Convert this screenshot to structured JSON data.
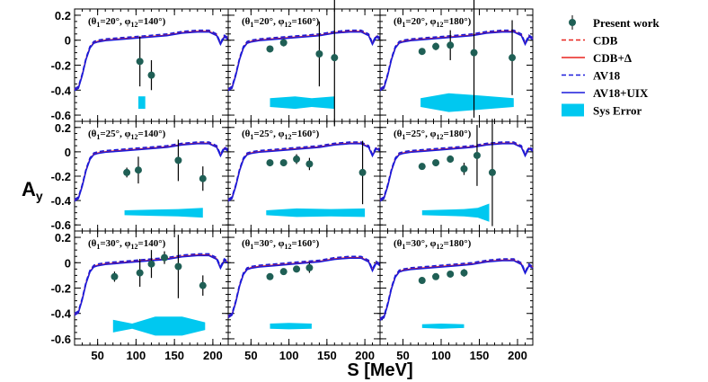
{
  "chart_data": {
    "type": "scatter",
    "xlabel": "S [MeV]",
    "ylabel": "A",
    "ylabel_sub": "y",
    "xlim": [
      20,
      220
    ],
    "ylim": [
      -0.65,
      0.25
    ],
    "x_ticks": [
      50,
      100,
      150,
      200
    ],
    "y_ticks": [
      0.2,
      0,
      -0.2,
      -0.4,
      -0.6
    ],
    "x_tick_labels": [
      "50",
      "100",
      "150",
      "200"
    ],
    "y_tick_labels": [
      "0.2",
      "0",
      "-0.2",
      "-0.4",
      "-0.6"
    ],
    "legend": [
      {
        "label": "Present work",
        "style": "marker",
        "color": "#1f5f55"
      },
      {
        "label": "CDB",
        "style": "dashed",
        "color": "#e8231f"
      },
      {
        "label": "CDB+Δ",
        "style": "solid",
        "color": "#e8231f"
      },
      {
        "label": "AV18",
        "style": "dashed",
        "color": "#1a1adb"
      },
      {
        "label": "AV18+UIX",
        "style": "solid",
        "color": "#1a1adb"
      },
      {
        "label": "Sys Error",
        "style": "band",
        "color": "#00c8f0"
      }
    ],
    "panels": [
      {
        "theta": "20°",
        "phi": "140°",
        "title_theta_part": "(θ",
        "title_theta_sub": "1",
        "title_theta_rest": "=20°, φ",
        "title_phi_sub": "12",
        "title_phi_rest": "=140°)",
        "points": [
          {
            "x": 105,
            "y": -0.17,
            "err": 0.2
          },
          {
            "x": 120,
            "y": -0.28,
            "err": 0.12
          }
        ],
        "sys_error": [
          {
            "x": 103,
            "h": 0.1
          },
          {
            "x": 112,
            "h": 0.1
          }
        ],
        "theory_shift": 0.0
      },
      {
        "theta": "20°",
        "phi": "160°",
        "title_theta_part": "(θ",
        "title_theta_sub": "1",
        "title_theta_rest": "=20°, φ",
        "title_phi_sub": "12",
        "title_phi_rest": "=160°)",
        "points": [
          {
            "x": 75,
            "y": -0.07,
            "err": 0.0
          },
          {
            "x": 93,
            "y": -0.02,
            "err": 0.03
          },
          {
            "x": 140,
            "y": -0.11,
            "err": 0.26
          },
          {
            "x": 160,
            "y": -0.14,
            "err": 0.55
          }
        ],
        "sys_error": [
          {
            "x": 75,
            "h": 0.07
          },
          {
            "x": 108,
            "h": 0.1
          },
          {
            "x": 130,
            "h": 0.07
          },
          {
            "x": 160,
            "h": 0.1
          }
        ],
        "theory_shift": 0.0
      },
      {
        "theta": "20°",
        "phi": "180°",
        "title_theta_part": "(θ",
        "title_theta_sub": "1",
        "title_theta_rest": "=20°, φ",
        "title_phi_sub": "12",
        "title_phi_rest": "=180°)",
        "points": [
          {
            "x": 75,
            "y": -0.09,
            "err": 0.02
          },
          {
            "x": 93,
            "y": -0.05,
            "err": 0.03
          },
          {
            "x": 112,
            "y": -0.04,
            "err": 0.12
          },
          {
            "x": 143,
            "y": -0.1,
            "err": 0.52
          },
          {
            "x": 193,
            "y": -0.14,
            "err": 0.3
          }
        ],
        "sys_error": [
          {
            "x": 73,
            "h": 0.07
          },
          {
            "x": 110,
            "h": 0.15
          },
          {
            "x": 143,
            "h": 0.12
          },
          {
            "x": 195,
            "h": 0.07
          }
        ],
        "theory_shift": 0.0
      },
      {
        "theta": "25°",
        "phi": "140°",
        "title_theta_part": "(θ",
        "title_theta_sub": "1",
        "title_theta_rest": "=25°, φ",
        "title_phi_sub": "12",
        "title_phi_rest": "=140°)",
        "points": [
          {
            "x": 88,
            "y": -0.17,
            "err": 0.04
          },
          {
            "x": 103,
            "y": -0.15,
            "err": 0.11
          },
          {
            "x": 155,
            "y": -0.07,
            "err": 0.17
          },
          {
            "x": 187,
            "y": -0.22,
            "err": 0.1
          }
        ],
        "sys_error": [
          {
            "x": 85,
            "h": 0.04
          },
          {
            "x": 120,
            "h": 0.05
          },
          {
            "x": 155,
            "h": 0.06
          },
          {
            "x": 187,
            "h": 0.08
          }
        ],
        "theory_shift": 0.0
      },
      {
        "theta": "25°",
        "phi": "160°",
        "title_theta_part": "(θ",
        "title_theta_sub": "1",
        "title_theta_rest": "=25°, φ",
        "title_phi_sub": "12",
        "title_phi_rest": "=160°)",
        "points": [
          {
            "x": 75,
            "y": -0.09,
            "err": 0.0
          },
          {
            "x": 93,
            "y": -0.09,
            "err": 0.02
          },
          {
            "x": 110,
            "y": -0.06,
            "err": 0.04
          },
          {
            "x": 127,
            "y": -0.1,
            "err": 0.05
          },
          {
            "x": 197,
            "y": -0.17,
            "err": 0.26
          }
        ],
        "sys_error": [
          {
            "x": 70,
            "h": 0.04
          },
          {
            "x": 110,
            "h": 0.07
          },
          {
            "x": 155,
            "h": 0.06
          },
          {
            "x": 200,
            "h": 0.07
          }
        ],
        "theory_shift": 0.0
      },
      {
        "theta": "25°",
        "phi": "180°",
        "title_theta_part": "(θ",
        "title_theta_sub": "1",
        "title_theta_rest": "=25°, φ",
        "title_phi_sub": "12",
        "title_phi_rest": "=180°)",
        "points": [
          {
            "x": 75,
            "y": -0.12,
            "err": 0.02
          },
          {
            "x": 93,
            "y": -0.09,
            "err": 0.02
          },
          {
            "x": 112,
            "y": -0.06,
            "err": 0.03
          },
          {
            "x": 130,
            "y": -0.14,
            "err": 0.05
          },
          {
            "x": 147,
            "y": -0.03,
            "err": 0.25
          },
          {
            "x": 167,
            "y": -0.17,
            "err": 0.44
          }
        ],
        "sys_error": [
          {
            "x": 75,
            "h": 0.04
          },
          {
            "x": 130,
            "h": 0.06
          },
          {
            "x": 148,
            "h": 0.08
          },
          {
            "x": 163,
            "h": 0.15
          }
        ],
        "theory_shift": 0.0
      },
      {
        "theta": "30°",
        "phi": "140°",
        "title_theta_part": "(θ",
        "title_theta_sub": "1",
        "title_theta_rest": "=30°, φ",
        "title_phi_sub": "12",
        "title_phi_rest": "=140°)",
        "points": [
          {
            "x": 72,
            "y": -0.11,
            "err": 0.04
          },
          {
            "x": 105,
            "y": -0.08,
            "err": 0.11
          },
          {
            "x": 120,
            "y": -0.01,
            "err": 0.11
          },
          {
            "x": 137,
            "y": 0.04,
            "err": 0.05
          },
          {
            "x": 155,
            "y": -0.03,
            "err": 0.25
          },
          {
            "x": 187,
            "y": -0.18,
            "err": 0.08
          }
        ],
        "sys_error": [
          {
            "x": 70,
            "h": 0.1
          },
          {
            "x": 95,
            "h": 0.04
          },
          {
            "x": 125,
            "h": 0.15
          },
          {
            "x": 160,
            "h": 0.15
          },
          {
            "x": 190,
            "h": 0.06
          }
        ],
        "theory_shift": -0.01
      },
      {
        "theta": "30°",
        "phi": "160°",
        "title_theta_part": "(θ",
        "title_theta_sub": "1",
        "title_theta_rest": "=30°, φ",
        "title_phi_sub": "12",
        "title_phi_rest": "=160°)",
        "points": [
          {
            "x": 75,
            "y": -0.11,
            "err": 0.0
          },
          {
            "x": 93,
            "y": -0.07,
            "err": 0.02
          },
          {
            "x": 110,
            "y": -0.05,
            "err": 0.02
          },
          {
            "x": 127,
            "y": -0.04,
            "err": 0.04
          }
        ],
        "sys_error": [
          {
            "x": 75,
            "h": 0.04
          },
          {
            "x": 100,
            "h": 0.05
          },
          {
            "x": 130,
            "h": 0.04
          }
        ],
        "theory_shift": -0.03
      },
      {
        "theta": "30°",
        "phi": "180°",
        "title_theta_part": "(θ",
        "title_theta_sub": "1",
        "title_theta_rest": "=30°, φ",
        "title_phi_sub": "12",
        "title_phi_rest": "=180°)",
        "points": [
          {
            "x": 75,
            "y": -0.14,
            "err": 0.0
          },
          {
            "x": 93,
            "y": -0.11,
            "err": 0.01
          },
          {
            "x": 112,
            "y": -0.09,
            "err": 0.02
          },
          {
            "x": 130,
            "y": -0.08,
            "err": 0.03
          }
        ],
        "sys_error": [
          {
            "x": 75,
            "h": 0.03
          },
          {
            "x": 100,
            "h": 0.04
          },
          {
            "x": 130,
            "h": 0.03
          }
        ],
        "theory_shift": -0.05
      }
    ],
    "theory_curve_points": [
      {
        "x": 20,
        "y": -0.4
      },
      {
        "x": 25,
        "y": -0.38
      },
      {
        "x": 30,
        "y": -0.28
      },
      {
        "x": 35,
        "y": -0.15
      },
      {
        "x": 40,
        "y": -0.06
      },
      {
        "x": 45,
        "y": -0.02
      },
      {
        "x": 50,
        "y": -0.01
      },
      {
        "x": 60,
        "y": 0.0
      },
      {
        "x": 80,
        "y": 0.01
      },
      {
        "x": 100,
        "y": 0.02
      },
      {
        "x": 120,
        "y": 0.03
      },
      {
        "x": 140,
        "y": 0.04
      },
      {
        "x": 160,
        "y": 0.06
      },
      {
        "x": 180,
        "y": 0.07
      },
      {
        "x": 195,
        "y": 0.07
      },
      {
        "x": 205,
        "y": 0.04
      },
      {
        "x": 210,
        "y": -0.03
      },
      {
        "x": 215,
        "y": 0.03
      },
      {
        "x": 220,
        "y": 0.01
      }
    ]
  }
}
